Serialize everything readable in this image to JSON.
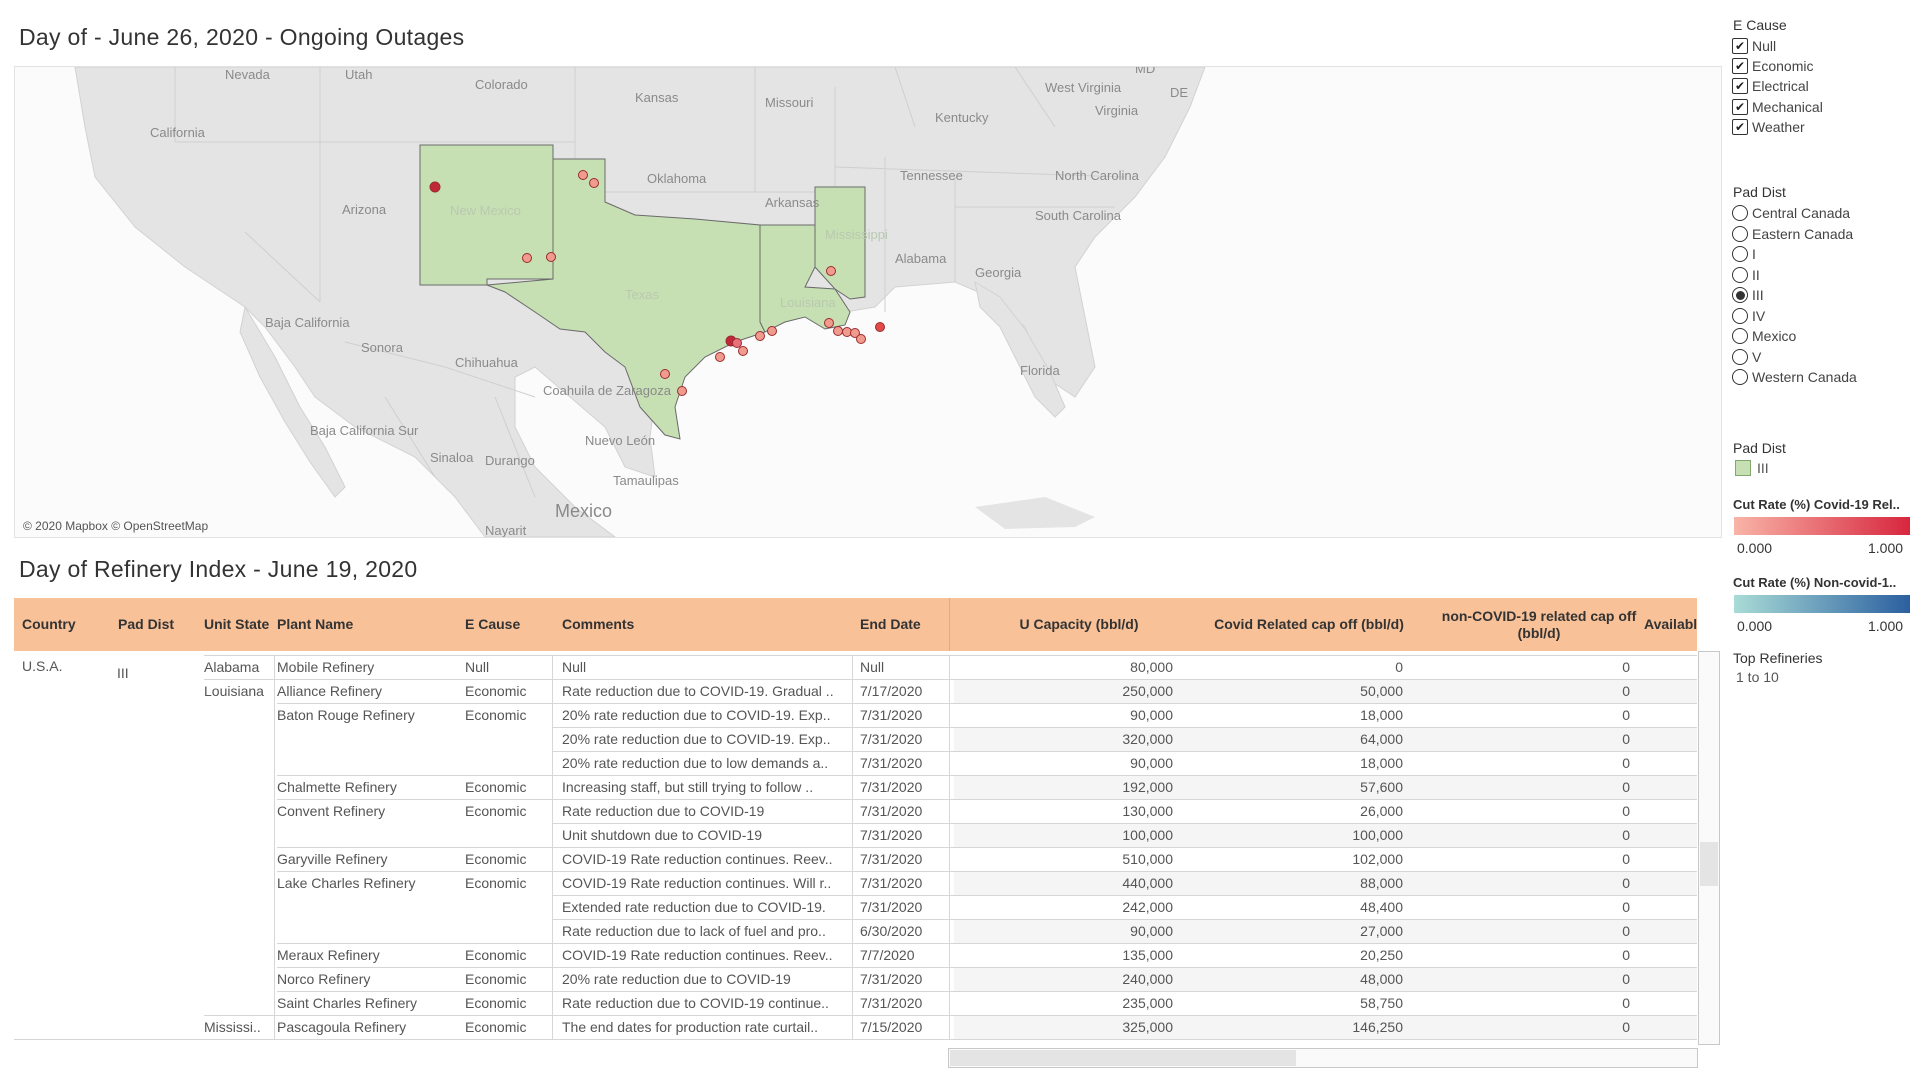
{
  "map_title": "Day of - June 26, 2020 - Ongoing Outages",
  "table_title": "Day of Refinery Index - June 19, 2020",
  "map": {
    "attribution": "© 2020 Mapbox © OpenStreetMap",
    "labels": [
      "Nevada",
      "Utah",
      "Colorado",
      "Kansas",
      "Missouri",
      "West Virginia",
      "Virginia",
      "Kentucky",
      "California",
      "Oklahoma",
      "Arizona",
      "New Mexico",
      "Arkansas",
      "Tennessee",
      "North Carolina",
      "South Carolina",
      "Mississippi",
      "Alabama",
      "Georgia",
      "Texas",
      "Louisiana",
      "Baja California",
      "Sonora",
      "Chihuahua",
      "Coahuila de Zaragoza",
      "Florida",
      "Baja California Sur",
      "Sinaloa",
      "Durango",
      "Nuevo León",
      "Tamaulipas",
      "Mexico",
      "Nayarit",
      "MD",
      "DE"
    ],
    "highlight_color": "#c6e0b4",
    "highlighted_states": [
      "New Mexico",
      "Texas",
      "Louisiana",
      "Mississippi"
    ]
  },
  "filters": {
    "e_cause": {
      "title": "E Cause",
      "options": [
        {
          "label": "Null",
          "checked": true
        },
        {
          "label": "Economic",
          "checked": true
        },
        {
          "label": "Electrical",
          "checked": true
        },
        {
          "label": "Mechanical",
          "checked": true
        },
        {
          "label": "Weather",
          "checked": true
        }
      ]
    },
    "pad_dist": {
      "title": "Pad Dist",
      "options": [
        {
          "label": "Central Canada",
          "selected": false
        },
        {
          "label": "Eastern Canada",
          "selected": false
        },
        {
          "label": "I",
          "selected": false
        },
        {
          "label": "II",
          "selected": false
        },
        {
          "label": "III",
          "selected": true
        },
        {
          "label": "IV",
          "selected": false
        },
        {
          "label": "Mexico",
          "selected": false
        },
        {
          "label": "V",
          "selected": false
        },
        {
          "label": "Western Canada",
          "selected": false
        }
      ]
    }
  },
  "legends": {
    "pad_dist_title": "Pad Dist",
    "pad_dist_value": "III",
    "covid_title": "Cut Rate (%) Covid-19 Rel..",
    "covid_min": "0.000",
    "covid_max": "1.000",
    "covid_colors": [
      "#f9b4a8",
      "#d7263d"
    ],
    "noncovid_title": "Cut Rate (%) Non-covid-1..",
    "noncovid_min": "0.000",
    "noncovid_max": "1.000",
    "noncovid_colors": [
      "#a9dcd6",
      "#2b5fa0"
    ],
    "top_title": "Top Refineries",
    "top_value": "1 to 10"
  },
  "table": {
    "headers": {
      "country": "Country",
      "pad": "Pad Dist",
      "unit": "Unit State",
      "plant": "Plant Name",
      "ecause": "E Cause",
      "comments": "Comments",
      "end": "End Date",
      "ucap": "U Capacity (bbl/d)",
      "covid": "Covid Related cap off (bbl/d)",
      "noncovid": "non-COVID-19 related cap off (bbl/d)",
      "avail": "Availabl"
    },
    "header_color": "#f8c198",
    "country": "U.S.A.",
    "pad": "III",
    "rows": [
      {
        "state": "Alabama",
        "plant": "Mobile Refinery",
        "ecause": "Null",
        "comments": "Null",
        "end": "Null",
        "ucap": "80,000",
        "covid": "0",
        "noncovid": "0"
      },
      {
        "state": "Louisiana",
        "plant": "Alliance Refinery",
        "ecause": "Economic",
        "comments": "Rate reduction due to COVID-19. Gradual ..",
        "end": "7/17/2020",
        "ucap": "250,000",
        "covid": "50,000",
        "noncovid": "0"
      },
      {
        "state": "",
        "plant": "Baton Rouge Refinery",
        "ecause": "Economic",
        "comments": "20% rate reduction due to COVID-19. Exp..",
        "end": "7/31/2020",
        "ucap": "90,000",
        "covid": "18,000",
        "noncovid": "0"
      },
      {
        "state": "",
        "plant": "",
        "ecause": "",
        "comments": "20% rate reduction due to COVID-19. Exp..",
        "end": "7/31/2020",
        "ucap": "320,000",
        "covid": "64,000",
        "noncovid": "0"
      },
      {
        "state": "",
        "plant": "",
        "ecause": "",
        "comments": "20% rate reduction due to low demands a..",
        "end": "7/31/2020",
        "ucap": "90,000",
        "covid": "18,000",
        "noncovid": "0"
      },
      {
        "state": "",
        "plant": "Chalmette Refinery",
        "ecause": "Economic",
        "comments": "Increasing staff, but still trying to follow ..",
        "end": "7/31/2020",
        "ucap": "192,000",
        "covid": "57,600",
        "noncovid": "0"
      },
      {
        "state": "",
        "plant": "Convent Refinery",
        "ecause": "Economic",
        "comments": "Rate reduction due to COVID-19",
        "end": "7/31/2020",
        "ucap": "130,000",
        "covid": "26,000",
        "noncovid": "0"
      },
      {
        "state": "",
        "plant": "",
        "ecause": "",
        "comments": "Unit shutdown due to COVID-19",
        "end": "7/31/2020",
        "ucap": "100,000",
        "covid": "100,000",
        "noncovid": "0"
      },
      {
        "state": "",
        "plant": "Garyville Refinery",
        "ecause": "Economic",
        "comments": "COVID-19 Rate reduction continues. Reev..",
        "end": "7/31/2020",
        "ucap": "510,000",
        "covid": "102,000",
        "noncovid": "0"
      },
      {
        "state": "",
        "plant": "Lake Charles Refinery",
        "ecause": "Economic",
        "comments": "COVID-19 Rate reduction continues. Will r..",
        "end": "7/31/2020",
        "ucap": "440,000",
        "covid": "88,000",
        "noncovid": "0"
      },
      {
        "state": "",
        "plant": "",
        "ecause": "",
        "comments": "Extended rate reduction due to COVID-19.",
        "end": "7/31/2020",
        "ucap": "242,000",
        "covid": "48,400",
        "noncovid": "0"
      },
      {
        "state": "",
        "plant": "",
        "ecause": "",
        "comments": "Rate reduction due to lack of fuel and pro..",
        "end": "6/30/2020",
        "ucap": "90,000",
        "covid": "27,000",
        "noncovid": "0"
      },
      {
        "state": "",
        "plant": "Meraux Refinery",
        "ecause": "Economic",
        "comments": "COVID-19 Rate reduction continues. Reev..",
        "end": "7/7/2020",
        "ucap": "135,000",
        "covid": "20,250",
        "noncovid": "0"
      },
      {
        "state": "",
        "plant": "Norco Refinery",
        "ecause": "Economic",
        "comments": "20% rate reduction due to COVID-19",
        "end": "7/31/2020",
        "ucap": "240,000",
        "covid": "48,000",
        "noncovid": "0"
      },
      {
        "state": "",
        "plant": "Saint Charles Refinery",
        "ecause": "Economic",
        "comments": "Rate reduction due to COVID-19 continue..",
        "end": "7/31/2020",
        "ucap": "235,000",
        "covid": "58,750",
        "noncovid": "0"
      },
      {
        "state": "Mississi..",
        "plant": "Pascagoula Refinery",
        "ecause": "Economic",
        "comments": "The end dates for production rate curtail..",
        "end": "7/15/2020",
        "ucap": "325,000",
        "covid": "146,250",
        "noncovid": "0"
      }
    ]
  }
}
